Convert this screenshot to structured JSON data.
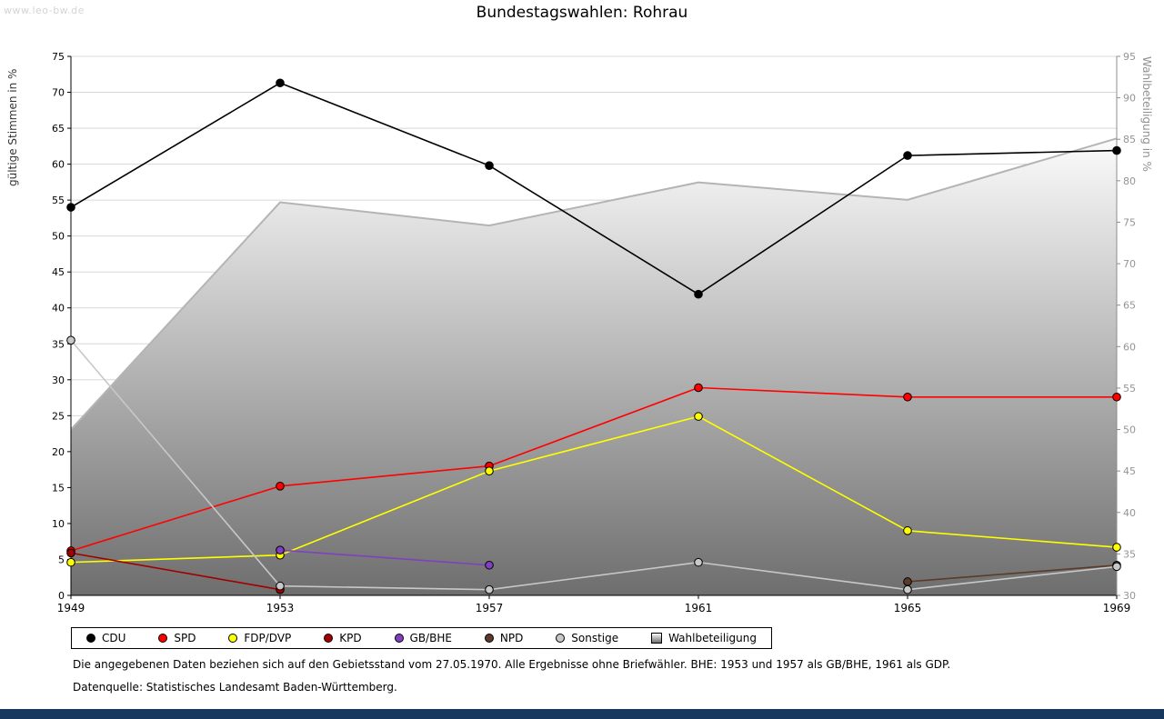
{
  "watermark": "www.leo-bw.de",
  "title": "Bundestagswahlen: Rohrau",
  "footnotes": {
    "line1": "Die angegebenen Daten beziehen sich auf den Gebietsstand vom 27.05.1970. Alle Ergebnisse ohne Briefwähler. BHE: 1953 und 1957 als GB/BHE, 1961 als GDP.",
    "line2": "Datenquelle: Statistisches Landesamt Baden-Württemberg."
  },
  "colors": {
    "bottom_bar": "#17375e",
    "gridline": "#d8d8d8"
  },
  "chart_data": {
    "type": "line",
    "title": "Bundestagswahlen: Rohrau",
    "x": [
      1949,
      1953,
      1957,
      1961,
      1965,
      1969
    ],
    "y_left": {
      "label": "gültige Stimmen in %",
      "min": 0,
      "max": 75,
      "tick_step": 5
    },
    "y_right": {
      "label": "Wahlbeteiligung in %",
      "min": 30,
      "max": 95,
      "tick_step": 5
    },
    "grid": true,
    "legend_position": "bottom",
    "series": [
      {
        "name": "CDU",
        "color": "#000000",
        "axis": "left",
        "points": [
          [
            1949,
            54.0
          ],
          [
            1953,
            71.3
          ],
          [
            1957,
            59.8
          ],
          [
            1961,
            41.9
          ],
          [
            1965,
            61.2
          ],
          [
            1969,
            61.9
          ]
        ]
      },
      {
        "name": "SPD",
        "color": "#ff0000",
        "axis": "left",
        "points": [
          [
            1949,
            6.2
          ],
          [
            1953,
            15.2
          ],
          [
            1957,
            18.0
          ],
          [
            1961,
            28.9
          ],
          [
            1965,
            27.6
          ],
          [
            1969,
            27.6
          ]
        ]
      },
      {
        "name": "FDP/DVP",
        "color": "#ffff00",
        "axis": "left",
        "points": [
          [
            1949,
            4.6
          ],
          [
            1953,
            5.6
          ],
          [
            1957,
            17.3
          ],
          [
            1961,
            24.9
          ],
          [
            1965,
            9.0
          ],
          [
            1969,
            6.7
          ]
        ]
      },
      {
        "name": "KPD",
        "color": "#a00000",
        "axis": "left",
        "points": [
          [
            1949,
            5.9
          ],
          [
            1953,
            0.8
          ]
        ]
      },
      {
        "name": "GB/BHE",
        "color": "#8040c0",
        "axis": "left",
        "points": [
          [
            1953,
            6.3
          ],
          [
            1957,
            4.2
          ]
        ]
      },
      {
        "name": "NPD",
        "color": "#5b3a29",
        "axis": "left",
        "points": [
          [
            1965,
            1.9
          ],
          [
            1969,
            4.2
          ]
        ]
      },
      {
        "name": "Sonstige",
        "color": "#c8c8c8",
        "axis": "left",
        "points": [
          [
            1949,
            35.5
          ],
          [
            1953,
            1.3
          ],
          [
            1957,
            0.8
          ],
          [
            1961,
            4.6
          ],
          [
            1965,
            0.8
          ],
          [
            1969,
            4.0
          ]
        ]
      }
    ],
    "turnout_area": {
      "name": "Wahlbeteiligung",
      "axis": "right",
      "stroke": "#b4b4b4",
      "fill_top": "#fbfbfb",
      "fill_bottom": "#6e6e6e",
      "points": [
        [
          1949,
          50.0
        ],
        [
          1953,
          77.4
        ],
        [
          1957,
          74.6
        ],
        [
          1961,
          79.8
        ],
        [
          1965,
          77.7
        ],
        [
          1969,
          85.1
        ]
      ]
    }
  },
  "legend": [
    {
      "label": "CDU",
      "marker": "dot",
      "color": "#000000"
    },
    {
      "label": "SPD",
      "marker": "dot",
      "color": "#ff0000"
    },
    {
      "label": "FDP/DVP",
      "marker": "dot",
      "color": "#ffff00"
    },
    {
      "label": "KPD",
      "marker": "dot",
      "color": "#a00000"
    },
    {
      "label": "GB/BHE",
      "marker": "dot",
      "color": "#8040c0"
    },
    {
      "label": "NPD",
      "marker": "dot",
      "color": "#5b3a29"
    },
    {
      "label": "Sonstige",
      "marker": "dot",
      "color": "#c8c8c8"
    },
    {
      "label": "Wahlbeteiligung",
      "marker": "square",
      "color": "#c8c8c8"
    }
  ]
}
